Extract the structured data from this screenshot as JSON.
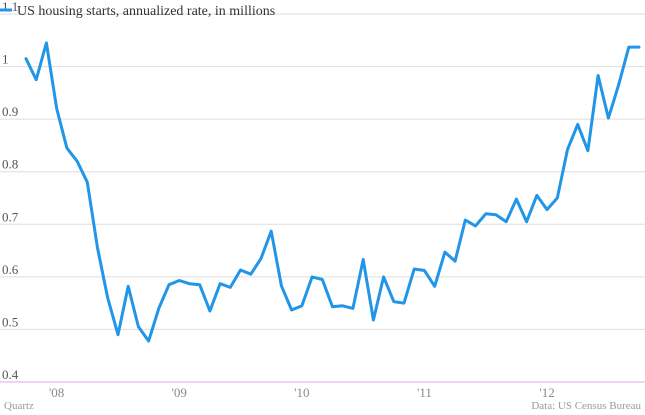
{
  "colors": {
    "series": "#2196e8",
    "grid": "#dedede",
    "baseline": "#f0c0f0"
  },
  "footer": {
    "source_left": "Quartz",
    "source_right": "Data: US Census Bureau"
  },
  "chart_data": {
    "type": "line",
    "title": "",
    "xlabel": "",
    "ylabel": "",
    "ylim": [
      0.4,
      1.1
    ],
    "yticks": [
      0.4,
      0.5,
      0.6,
      0.7,
      0.8,
      0.9,
      1,
      1.1
    ],
    "ytick_labels": [
      "0.4",
      "0.5",
      "0.6",
      "0.7",
      "0.8",
      "0.9",
      "1",
      "1.1"
    ],
    "xlim": [
      "2007-10",
      "2012-10"
    ],
    "xticks": [
      {
        "date": "2008-01",
        "label": "'08"
      },
      {
        "date": "2009-01",
        "label": "'09"
      },
      {
        "date": "2010-01",
        "label": "'10"
      },
      {
        "date": "2011-01",
        "label": "'11"
      },
      {
        "date": "2012-01",
        "label": "'12"
      }
    ],
    "grid": true,
    "legend": "top-left",
    "series": [
      {
        "name": "US housing starts, annualized rate, in millions",
        "x": [
          "2007-10",
          "2007-11",
          "2007-12",
          "2008-01",
          "2008-02",
          "2008-03",
          "2008-04",
          "2008-05",
          "2008-06",
          "2008-07",
          "2008-08",
          "2008-09",
          "2008-10",
          "2008-11",
          "2008-12",
          "2009-01",
          "2009-02",
          "2009-03",
          "2009-04",
          "2009-05",
          "2009-06",
          "2009-07",
          "2009-08",
          "2009-09",
          "2009-10",
          "2009-11",
          "2009-12",
          "2010-01",
          "2010-02",
          "2010-03",
          "2010-04",
          "2010-05",
          "2010-06",
          "2010-07",
          "2010-08",
          "2010-09",
          "2010-10",
          "2010-11",
          "2010-12",
          "2011-01",
          "2011-02",
          "2011-03",
          "2011-04",
          "2011-05",
          "2011-06",
          "2011-07",
          "2011-08",
          "2011-09",
          "2011-10",
          "2011-11",
          "2011-12",
          "2012-01",
          "2012-02",
          "2012-03",
          "2012-04",
          "2012-05",
          "2012-06",
          "2012-07",
          "2012-08",
          "2012-09",
          "2012-10"
        ],
        "values": [
          1.015,
          0.975,
          1.045,
          0.92,
          0.845,
          0.82,
          0.78,
          0.655,
          0.56,
          0.49,
          0.582,
          0.505,
          0.478,
          0.54,
          0.585,
          0.593,
          0.587,
          0.585,
          0.535,
          0.587,
          0.58,
          0.613,
          0.605,
          0.635,
          0.687,
          0.583,
          0.537,
          0.545,
          0.6,
          0.595,
          0.543,
          0.545,
          0.54,
          0.633,
          0.518,
          0.6,
          0.553,
          0.55,
          0.615,
          0.612,
          0.582,
          0.647,
          0.63,
          0.708,
          0.697,
          0.72,
          0.718,
          0.705,
          0.748,
          0.705,
          0.755,
          0.728,
          0.75,
          0.842,
          0.89,
          0.84,
          0.983,
          0.902,
          0.965,
          1.037,
          1.037
        ]
      }
    ]
  }
}
